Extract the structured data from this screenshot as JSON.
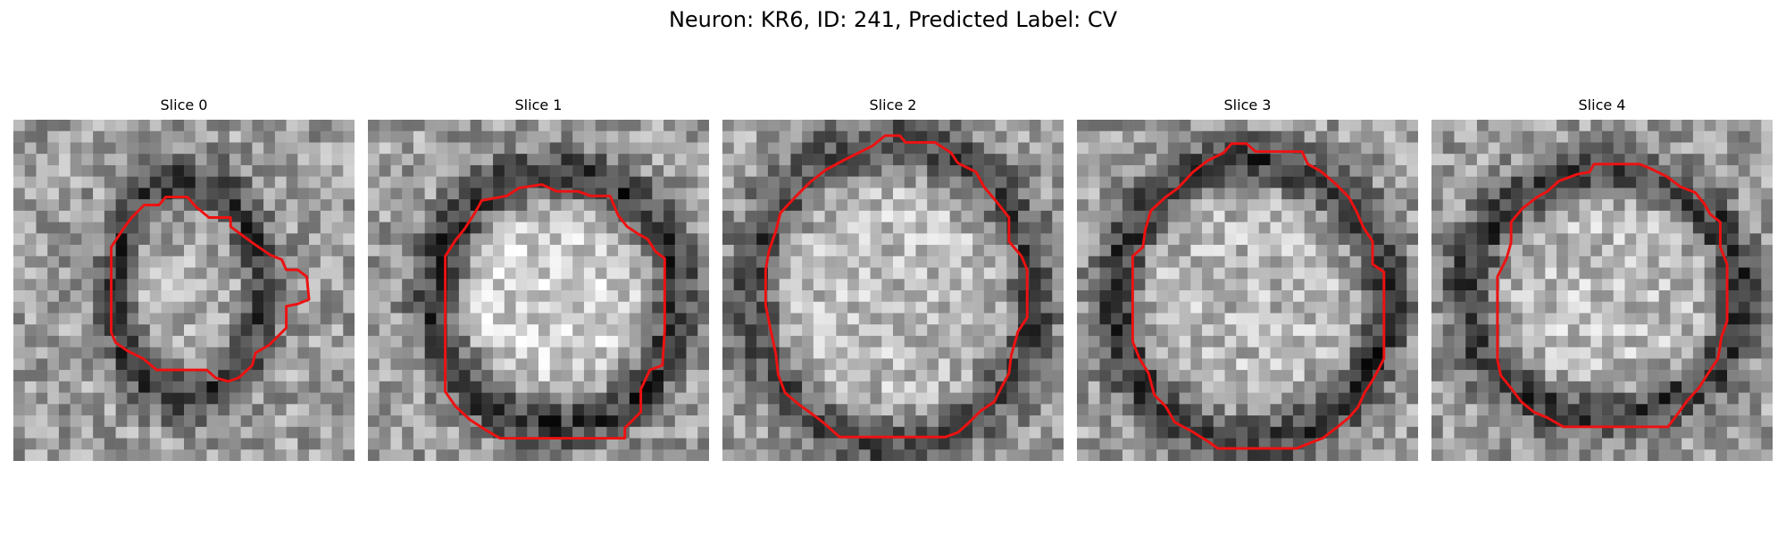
{
  "figure": {
    "title": "Neuron: KR6, ID: 241, Predicted Label: CV",
    "grid_size": 30,
    "colors": {
      "background": "#ffffff",
      "contour": "#ee1111",
      "cmap_dark": "#000000",
      "cmap_light": "#ffffff"
    }
  },
  "panels": [
    {
      "title": "Slice 0",
      "seed": 11,
      "center": [
        15.4,
        15.0
      ],
      "radius_rows": [
        6.6,
        9.4
      ],
      "rim_width": 1.2,
      "interior_brightness": 0.68,
      "rim_darkness": 0.25,
      "contour": [
        [
          11.5,
          7.5
        ],
        [
          12.8,
          7.5
        ],
        [
          13.4,
          6.8
        ],
        [
          15.3,
          6.8
        ],
        [
          16.1,
          7.7
        ],
        [
          17.2,
          8.6
        ],
        [
          19.1,
          8.6
        ],
        [
          19.1,
          9.4
        ],
        [
          21.0,
          10.8
        ],
        [
          22.6,
          11.9
        ],
        [
          23.6,
          12.3
        ],
        [
          24.0,
          13.2
        ],
        [
          25.0,
          13.2
        ],
        [
          25.8,
          13.8
        ],
        [
          26.0,
          15.8
        ],
        [
          25.0,
          16.2
        ],
        [
          24.0,
          16.4
        ],
        [
          24.0,
          18.3
        ],
        [
          23.2,
          19.1
        ],
        [
          22.5,
          19.8
        ],
        [
          21.3,
          20.5
        ],
        [
          21.0,
          21.6
        ],
        [
          19.8,
          22.7
        ],
        [
          18.9,
          23.0
        ],
        [
          17.8,
          22.7
        ],
        [
          17.0,
          22.0
        ],
        [
          14.9,
          22.0
        ],
        [
          12.6,
          22.0
        ],
        [
          11.4,
          21.0
        ],
        [
          10.0,
          20.3
        ],
        [
          9.0,
          19.6
        ],
        [
          8.6,
          18.7
        ],
        [
          8.6,
          15.2
        ],
        [
          8.6,
          11.2
        ],
        [
          9.8,
          9.4
        ],
        [
          10.4,
          8.6
        ]
      ]
    },
    {
      "title": "Slice 1",
      "seed": 23,
      "center": [
        16.5,
        15.8
      ],
      "radius_rows": [
        10.5,
        11.0
      ],
      "rim_width": 1.6,
      "interior_brightness": 0.82,
      "rim_darkness": 0.22,
      "contour": [
        [
          10.0,
          7.1
        ],
        [
          12.2,
          6.7
        ],
        [
          13.3,
          6.0
        ],
        [
          15.3,
          5.7
        ],
        [
          16.6,
          6.3
        ],
        [
          18.5,
          6.3
        ],
        [
          19.6,
          6.7
        ],
        [
          21.3,
          6.7
        ],
        [
          22.0,
          8.4
        ],
        [
          22.8,
          9.4
        ],
        [
          23.7,
          10.0
        ],
        [
          24.6,
          10.5
        ],
        [
          25.3,
          11.6
        ],
        [
          26.1,
          12.2
        ],
        [
          26.1,
          15.0
        ],
        [
          26.1,
          18.5
        ],
        [
          25.9,
          21.6
        ],
        [
          24.8,
          22.0
        ],
        [
          24.0,
          23.7
        ],
        [
          24.0,
          25.7
        ],
        [
          22.6,
          27.1
        ],
        [
          22.6,
          28.0
        ],
        [
          21.8,
          28.0
        ],
        [
          15.9,
          28.0
        ],
        [
          11.6,
          28.0
        ],
        [
          10.4,
          27.3
        ],
        [
          9.0,
          26.4
        ],
        [
          7.7,
          25.2
        ],
        [
          6.8,
          23.9
        ],
        [
          6.8,
          21.0
        ],
        [
          6.8,
          15.0
        ],
        [
          6.8,
          12.0
        ],
        [
          7.7,
          10.6
        ],
        [
          8.5,
          9.6
        ],
        [
          9.4,
          8.2
        ],
        [
          9.8,
          7.5
        ]
      ]
    },
    {
      "title": "Slice 2",
      "seed": 37,
      "center": [
        15.0,
        15.3
      ],
      "radius_rows": [
        12.3,
        13.3
      ],
      "rim_width": 1.7,
      "interior_brightness": 0.74,
      "rim_darkness": 0.3,
      "contour": [
        [
          10.6,
          3.6
        ],
        [
          13.2,
          2.3
        ],
        [
          14.3,
          1.4
        ],
        [
          15.6,
          1.4
        ],
        [
          16.1,
          2.0
        ],
        [
          18.7,
          2.0
        ],
        [
          20.1,
          2.9
        ],
        [
          20.7,
          3.8
        ],
        [
          22.3,
          4.6
        ],
        [
          23.0,
          5.9
        ],
        [
          24.1,
          7.2
        ],
        [
          25.2,
          8.6
        ],
        [
          25.2,
          10.7
        ],
        [
          26.3,
          12.0
        ],
        [
          26.8,
          13.2
        ],
        [
          26.8,
          17.4
        ],
        [
          26.0,
          18.6
        ],
        [
          25.4,
          20.7
        ],
        [
          25.2,
          22.3
        ],
        [
          24.5,
          23.6
        ],
        [
          23.9,
          24.8
        ],
        [
          22.7,
          25.6
        ],
        [
          21.6,
          26.7
        ],
        [
          20.7,
          27.5
        ],
        [
          19.6,
          27.9
        ],
        [
          17.5,
          27.9
        ],
        [
          13.3,
          27.9
        ],
        [
          10.3,
          27.9
        ],
        [
          9.2,
          26.9
        ],
        [
          8.2,
          26.1
        ],
        [
          6.8,
          25.1
        ],
        [
          5.5,
          24.0
        ],
        [
          4.9,
          22.4
        ],
        [
          4.7,
          20.6
        ],
        [
          4.2,
          18.3
        ],
        [
          3.8,
          16.3
        ],
        [
          3.8,
          13.2
        ],
        [
          4.1,
          11.5
        ],
        [
          4.7,
          9.8
        ],
        [
          5.1,
          8.2
        ],
        [
          6.4,
          6.8
        ],
        [
          7.7,
          5.5
        ],
        [
          9.1,
          4.4
        ]
      ]
    },
    {
      "title": "Slice 3",
      "seed": 53,
      "center": [
        15.3,
        16.0
      ],
      "radius_rows": [
        11.9,
        12.3
      ],
      "rim_width": 1.6,
      "interior_brightness": 0.72,
      "rim_darkness": 0.22,
      "contour": [
        [
          11.5,
          3.6
        ],
        [
          12.9,
          2.9
        ],
        [
          13.6,
          2.1
        ],
        [
          14.9,
          2.1
        ],
        [
          15.7,
          2.8
        ],
        [
          19.8,
          2.8
        ],
        [
          20.3,
          3.9
        ],
        [
          21.4,
          4.5
        ],
        [
          22.7,
          5.6
        ],
        [
          23.9,
          6.8
        ],
        [
          24.6,
          8.1
        ],
        [
          25.2,
          9.5
        ],
        [
          26.0,
          10.7
        ],
        [
          26.0,
          12.7
        ],
        [
          27.0,
          13.4
        ],
        [
          27.0,
          17.1
        ],
        [
          27.0,
          21.0
        ],
        [
          26.6,
          21.8
        ],
        [
          26.0,
          22.9
        ],
        [
          25.3,
          24.0
        ],
        [
          24.7,
          25.3
        ],
        [
          23.9,
          26.2
        ],
        [
          22.8,
          27.1
        ],
        [
          21.6,
          28.0
        ],
        [
          20.3,
          28.5
        ],
        [
          19.3,
          28.9
        ],
        [
          17.0,
          28.9
        ],
        [
          12.4,
          28.9
        ],
        [
          11.4,
          28.2
        ],
        [
          10.1,
          27.4
        ],
        [
          8.6,
          26.6
        ],
        [
          7.8,
          25.2
        ],
        [
          6.8,
          24.2
        ],
        [
          6.3,
          22.3
        ],
        [
          5.5,
          21.0
        ],
        [
          4.9,
          19.5
        ],
        [
          4.9,
          16.5
        ],
        [
          4.9,
          12.0
        ],
        [
          5.8,
          11.2
        ],
        [
          6.0,
          9.7
        ],
        [
          6.5,
          8.0
        ],
        [
          7.8,
          6.8
        ],
        [
          8.9,
          6.0
        ],
        [
          10.2,
          4.6
        ]
      ]
    },
    {
      "title": "Slice 4",
      "seed": 71,
      "center": [
        15.2,
        15.4
      ],
      "radius_rows": [
        11.9,
        10.7
      ],
      "rim_width": 1.5,
      "interior_brightness": 0.74,
      "rim_darkness": 0.23,
      "contour": [
        [
          11.2,
          5.4
        ],
        [
          12.8,
          4.8
        ],
        [
          13.9,
          4.6
        ],
        [
          14.3,
          3.9
        ],
        [
          18.3,
          3.9
        ],
        [
          19.5,
          4.4
        ],
        [
          20.7,
          5.0
        ],
        [
          21.9,
          5.9
        ],
        [
          23.2,
          6.4
        ],
        [
          24.0,
          7.4
        ],
        [
          24.5,
          8.3
        ],
        [
          25.4,
          9.0
        ],
        [
          25.4,
          11.2
        ],
        [
          26.0,
          12.7
        ],
        [
          26.0,
          14.7
        ],
        [
          26.0,
          17.7
        ],
        [
          25.5,
          19.1
        ],
        [
          25.2,
          21.0
        ],
        [
          24.2,
          22.5
        ],
        [
          23.5,
          23.6
        ],
        [
          22.5,
          24.7
        ],
        [
          21.7,
          25.8
        ],
        [
          20.8,
          27.0
        ],
        [
          18.7,
          27.0
        ],
        [
          14.0,
          27.0
        ],
        [
          11.6,
          27.0
        ],
        [
          10.2,
          26.2
        ],
        [
          9.0,
          25.7
        ],
        [
          7.9,
          24.8
        ],
        [
          7.0,
          23.6
        ],
        [
          6.1,
          22.5
        ],
        [
          5.8,
          21.1
        ],
        [
          5.8,
          17.6
        ],
        [
          5.8,
          13.8
        ],
        [
          6.6,
          12.2
        ],
        [
          7.0,
          10.8
        ],
        [
          7.0,
          9.0
        ],
        [
          8.0,
          7.8
        ],
        [
          9.3,
          6.8
        ],
        [
          10.2,
          6.3
        ]
      ]
    }
  ]
}
